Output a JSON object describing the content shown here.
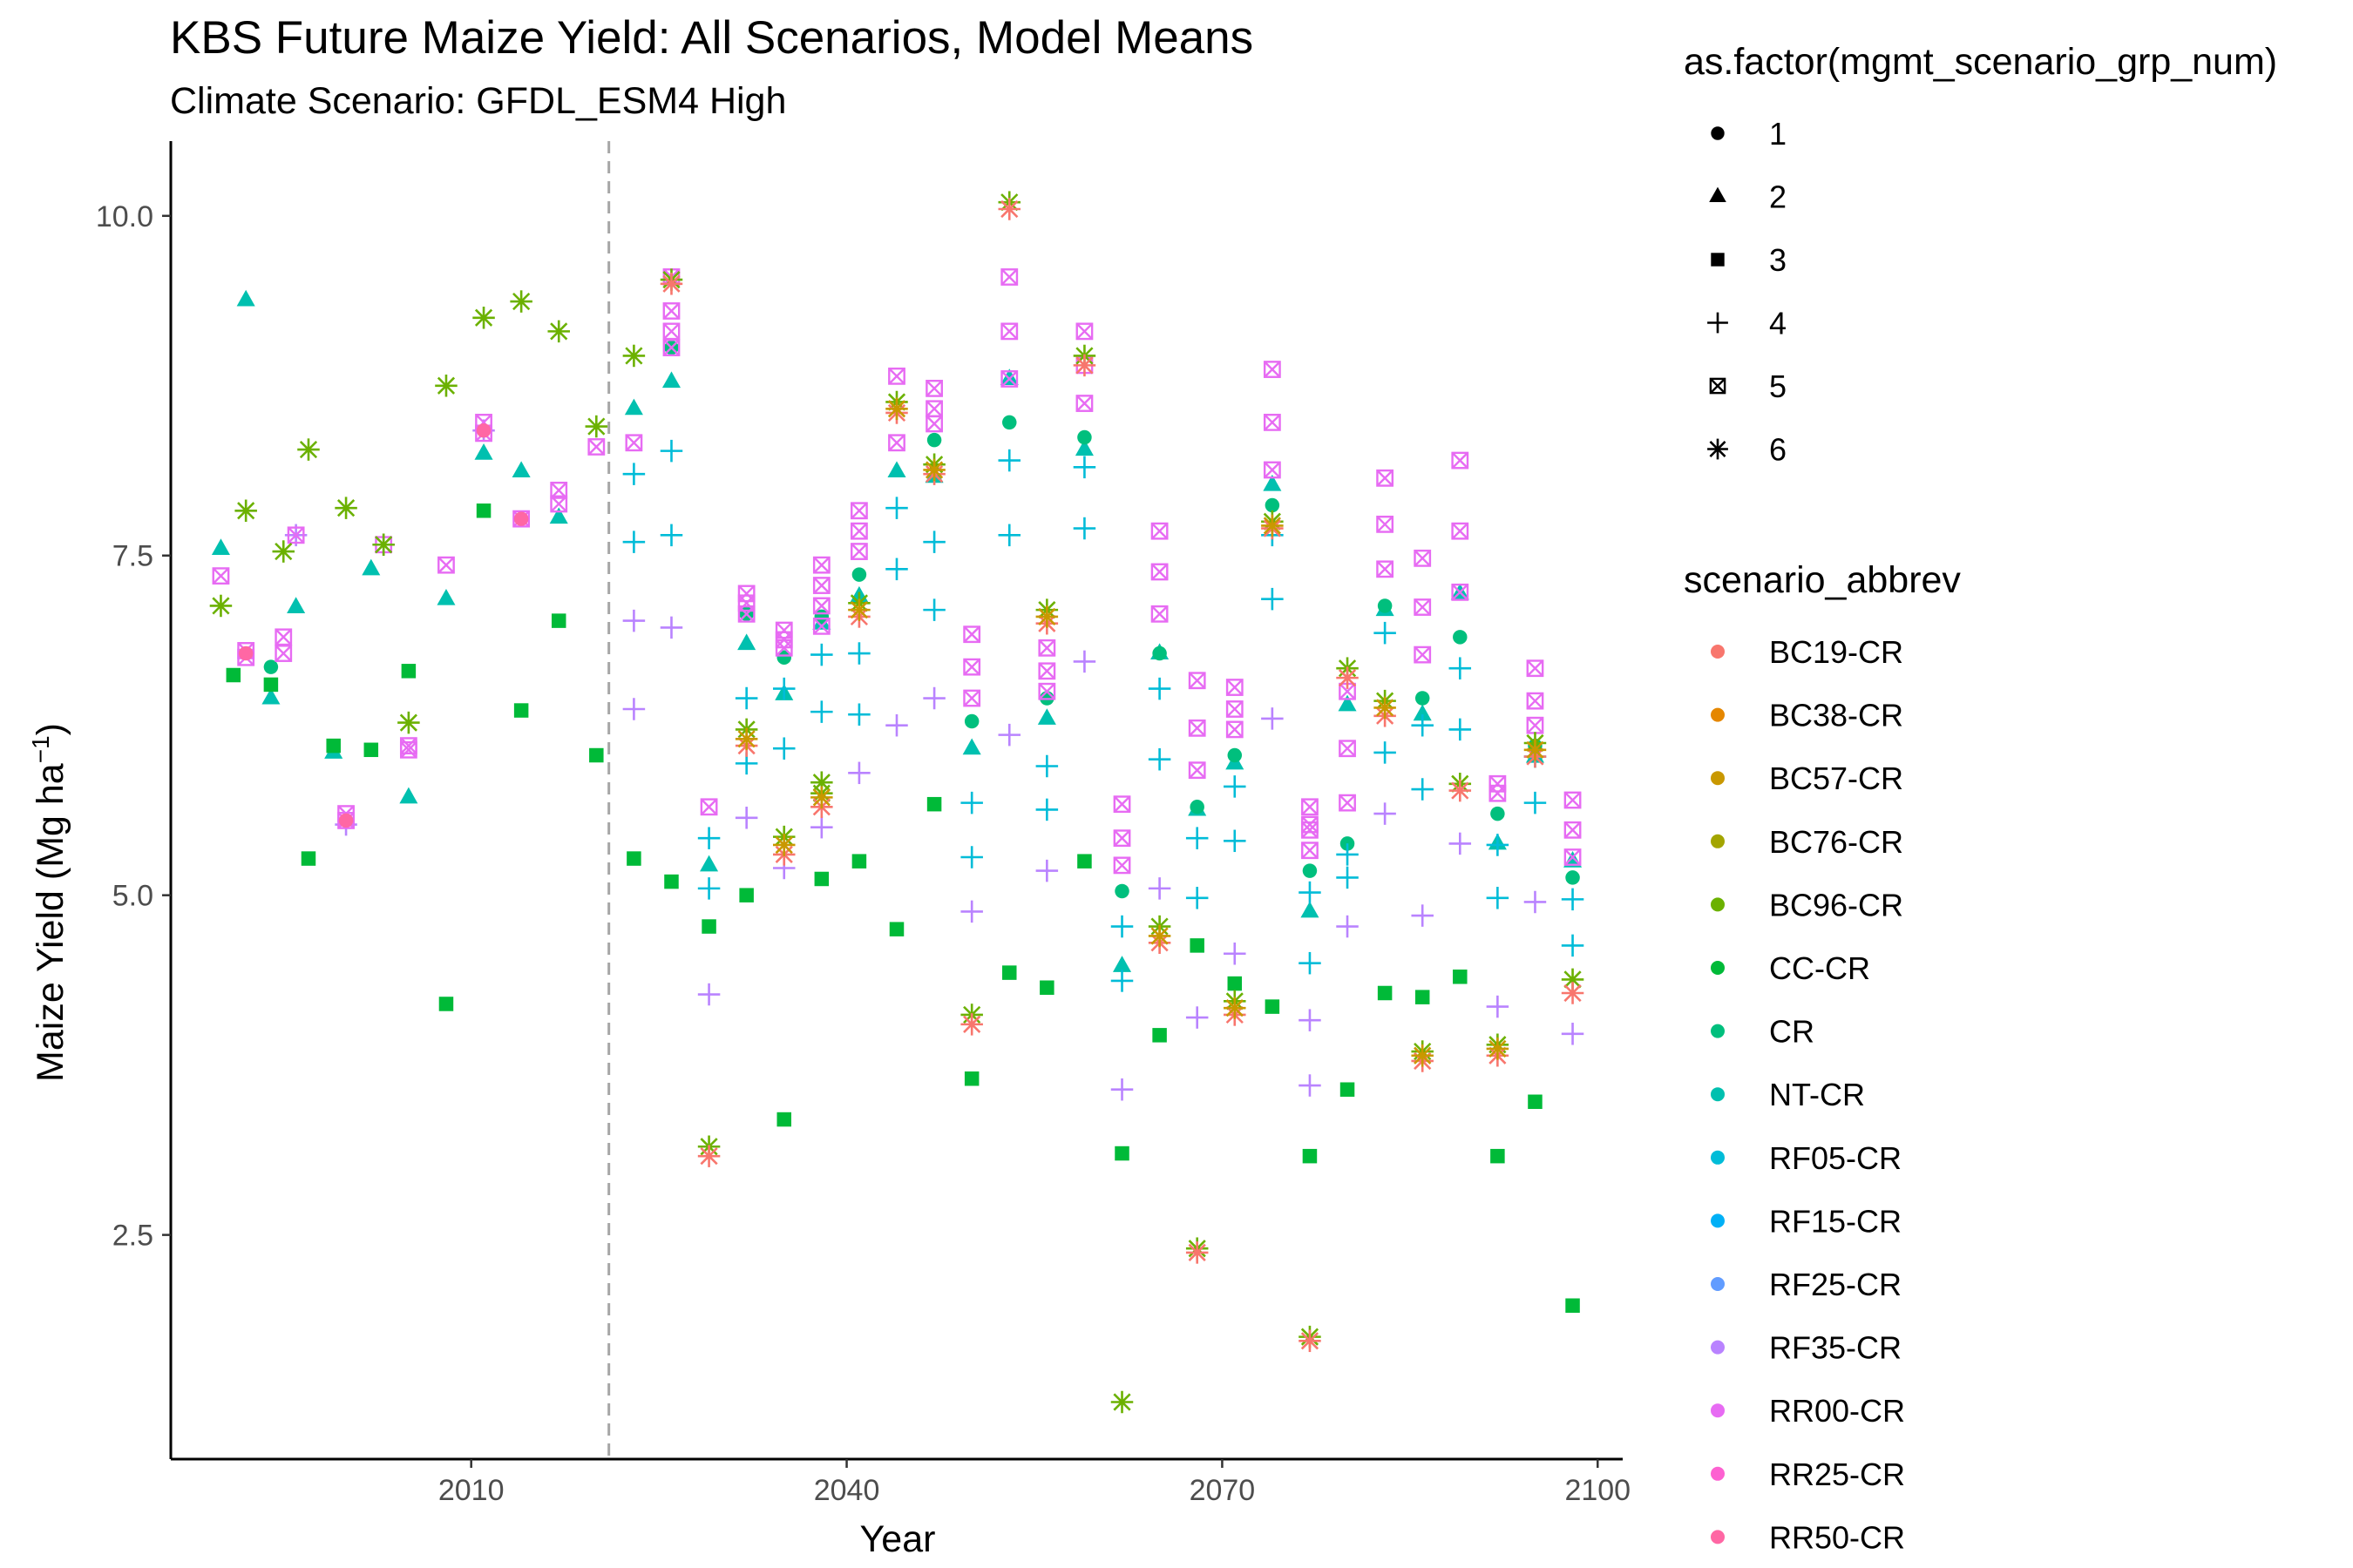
{
  "chart_data": {
    "type": "scatter",
    "title": "KBS Future Maize Yield: All Scenarios, Model Means",
    "subtitle": "Climate Scenario: GFDL_ESM4 High",
    "xlabel": "Year",
    "ylabel_main": "Maize Yield (Mg ha",
    "ylabel_sup": "−1",
    "ylabel_end": ")",
    "xlim": [
      1986,
      2102
    ],
    "ylim": [
      0.85,
      10.55
    ],
    "x_ticks": [
      2010,
      2040,
      2070,
      2100
    ],
    "y_ticks": [
      2.5,
      5.0,
      7.5,
      10.0
    ],
    "y_tick_labels": [
      "2.5",
      "5.0",
      "7.5",
      "10.0"
    ],
    "reference_line_x": 2021,
    "grid": false,
    "shape_legend": {
      "title": "as.factor(mgmt_scenario_grp_num)",
      "items": [
        {
          "label": "1",
          "shape": "circle"
        },
        {
          "label": "2",
          "shape": "triangle"
        },
        {
          "label": "3",
          "shape": "square"
        },
        {
          "label": "4",
          "shape": "plus"
        },
        {
          "label": "5",
          "shape": "boxcross"
        },
        {
          "label": "6",
          "shape": "asterisk"
        }
      ]
    },
    "color_legend": {
      "title": "scenario_abbrev",
      "items": [
        {
          "label": "BC19-CR",
          "color": "#F8766D"
        },
        {
          "label": "BC38-CR",
          "color": "#E58700"
        },
        {
          "label": "BC57-CR",
          "color": "#C99800"
        },
        {
          "label": "BC76-CR",
          "color": "#A3A500"
        },
        {
          "label": "BC96-CR",
          "color": "#6BB100"
        },
        {
          "label": "CC-CR",
          "color": "#00BA38"
        },
        {
          "label": "CR",
          "color": "#00BF7D"
        },
        {
          "label": "NT-CR",
          "color": "#00C0AF"
        },
        {
          "label": "RF05-CR",
          "color": "#00BCD8"
        },
        {
          "label": "RF15-CR",
          "color": "#00B0F6"
        },
        {
          "label": "RF25-CR",
          "color": "#619CFF"
        },
        {
          "label": "RF35-CR",
          "color": "#B983FF"
        },
        {
          "label": "RR00-CR",
          "color": "#E76BF3"
        },
        {
          "label": "RR25-CR",
          "color": "#FD61D1"
        },
        {
          "label": "RR50-CR",
          "color": "#FF67A4"
        }
      ]
    },
    "series": [
      {
        "scenario": "CR",
        "shape": "triangle",
        "color": "#00C0AF",
        "x": [
          1990,
          1992,
          1994,
          1996,
          1999,
          2002,
          2005,
          2008,
          2011,
          2014,
          2017,
          2023,
          2026,
          2029,
          2032,
          2035,
          2038,
          2041,
          2044,
          2047,
          2050,
          2053,
          2056,
          2059,
          2062,
          2065,
          2068,
          2071,
          2074,
          2077,
          2080,
          2083,
          2086,
          2089,
          2092,
          2095,
          2098
        ],
        "y": [
          7.55,
          9.38,
          6.45,
          7.12,
          6.05,
          7.4,
          5.72,
          7.18,
          8.25,
          8.12,
          7.78,
          8.58,
          8.78,
          5.22,
          6.85,
          6.48,
          7.0,
          7.2,
          8.12,
          8.08,
          6.08,
          8.8,
          6.3,
          8.28,
          4.48,
          6.78,
          5.63,
          5.97,
          8.02,
          4.88,
          6.4,
          7.1,
          6.33,
          7.22,
          5.38,
          6.02,
          5.25
        ]
      },
      {
        "scenario": "CR",
        "shape": "circle",
        "color": "#00BF7D",
        "x": [
          1994,
          2026,
          2032,
          2035,
          2038,
          2041,
          2047,
          2050,
          2053,
          2056,
          2059,
          2062,
          2065,
          2068,
          2071,
          2074,
          2077,
          2080,
          2083,
          2086,
          2089,
          2092,
          2095,
          2098
        ],
        "y": [
          6.68,
          9.03,
          7.07,
          6.75,
          7.05,
          7.36,
          8.35,
          6.28,
          8.48,
          6.45,
          8.37,
          5.03,
          6.78,
          5.65,
          6.03,
          7.87,
          5.18,
          5.38,
          7.13,
          6.45,
          6.9,
          5.6,
          6.1,
          5.13
        ]
      },
      {
        "scenario": "CC-CR",
        "shape": "square",
        "color": "#00BA38",
        "x": [
          1991,
          1994,
          1997,
          1999,
          2002,
          2005,
          2008,
          2011,
          2014,
          2017,
          2020,
          2023,
          2026,
          2029,
          2032,
          2035,
          2038,
          2041,
          2044,
          2047,
          2050,
          2053,
          2056,
          2059,
          2062,
          2065,
          2068,
          2071,
          2074,
          2077,
          2080,
          2083,
          2086,
          2089,
          2092,
          2095,
          2098
        ],
        "y": [
          6.62,
          6.55,
          5.27,
          6.1,
          6.07,
          6.65,
          4.2,
          7.83,
          6.36,
          7.02,
          6.03,
          5.27,
          5.1,
          4.77,
          5.0,
          3.35,
          5.12,
          5.25,
          4.75,
          5.67,
          3.65,
          4.43,
          4.32,
          5.25,
          3.1,
          3.97,
          4.63,
          4.35,
          4.18,
          3.08,
          3.57,
          4.28,
          4.25,
          4.4,
          3.08,
          3.48,
          1.98
        ]
      },
      {
        "scenario": "RF05-CR",
        "shape": "plus",
        "color": "#00BCD8",
        "x": [
          2023,
          2023,
          2026,
          2026,
          2029,
          2029,
          2032,
          2032,
          2035,
          2035,
          2038,
          2038,
          2041,
          2041,
          2044,
          2044,
          2047,
          2047,
          2050,
          2050,
          2053,
          2053,
          2056,
          2056,
          2059,
          2059,
          2062,
          2062,
          2065,
          2065,
          2068,
          2068,
          2071,
          2071,
          2074,
          2074,
          2077,
          2077,
          2080,
          2080,
          2083,
          2083,
          2086,
          2086,
          2089,
          2089,
          2092,
          2092,
          2095,
          2095,
          2098,
          2098
        ],
        "y": [
          8.1,
          7.6,
          8.27,
          7.65,
          5.42,
          5.05,
          6.45,
          5.97,
          6.52,
          6.08,
          6.77,
          6.35,
          6.78,
          6.33,
          7.85,
          7.4,
          7.6,
          7.1,
          5.68,
          5.28,
          8.2,
          7.65,
          5.95,
          5.63,
          8.15,
          7.7,
          4.77,
          4.37,
          6.52,
          6.0,
          5.42,
          4.98,
          5.8,
          5.4,
          7.65,
          7.18,
          5.02,
          4.5,
          5.3,
          5.13,
          6.93,
          6.05,
          6.25,
          5.78,
          6.67,
          6.22,
          5.37,
          4.98,
          6.02,
          5.68,
          4.97,
          4.63
        ]
      },
      {
        "scenario": "RF35-CR",
        "shape": "plus",
        "color": "#B983FF",
        "x": [
          1996,
          2000,
          2003,
          2011,
          2023,
          2023,
          2026,
          2029,
          2032,
          2035,
          2038,
          2041,
          2044,
          2047,
          2050,
          2053,
          2056,
          2059,
          2062,
          2065,
          2068,
          2071,
          2074,
          2077,
          2077,
          2080,
          2083,
          2086,
          2089,
          2092,
          2095,
          2098
        ],
        "y": [
          7.65,
          5.52,
          7.58,
          8.42,
          7.02,
          6.37,
          6.97,
          4.27,
          5.57,
          5.2,
          5.5,
          5.9,
          6.25,
          6.45,
          4.88,
          6.18,
          5.18,
          6.72,
          3.57,
          5.05,
          4.1,
          4.57,
          6.3,
          4.08,
          3.6,
          4.77,
          5.6,
          4.85,
          5.38,
          4.18,
          4.95,
          3.98
        ]
      },
      {
        "scenario": "RR00-CR",
        "shape": "boxcross",
        "color": "#E76BF3",
        "x": [
          1990,
          1992,
          1992,
          1995,
          1995,
          1996,
          2000,
          2000,
          2003,
          2005,
          2005,
          2008,
          2011,
          2011,
          2014,
          2017,
          2017,
          2020,
          2023,
          2026,
          2026,
          2026,
          2026,
          2029,
          2032,
          2032,
          2032,
          2035,
          2035,
          2035,
          2038,
          2038,
          2038,
          2038,
          2041,
          2041,
          2041,
          2044,
          2044,
          2047,
          2047,
          2047,
          2050,
          2050,
          2050,
          2053,
          2053,
          2053,
          2056,
          2056,
          2056,
          2059,
          2059,
          2059,
          2062,
          2062,
          2062,
          2065,
          2065,
          2065,
          2068,
          2068,
          2068,
          2071,
          2071,
          2071,
          2074,
          2074,
          2074,
          2077,
          2077,
          2077,
          2077,
          2080,
          2080,
          2080,
          2083,
          2083,
          2083,
          2086,
          2086,
          2086,
          2089,
          2089,
          2089,
          2092,
          2092,
          2095,
          2095,
          2095,
          2098,
          2098,
          2098
        ],
        "y": [
          7.35,
          6.8,
          6.75,
          6.9,
          6.78,
          7.65,
          5.6,
          5.55,
          7.58,
          6.1,
          6.07,
          7.43,
          8.48,
          8.4,
          7.77,
          7.98,
          7.88,
          8.3,
          8.33,
          9.3,
          9.15,
          9.03,
          9.55,
          5.65,
          7.22,
          7.15,
          7.07,
          6.95,
          6.88,
          6.82,
          7.43,
          7.28,
          7.13,
          6.98,
          7.83,
          7.68,
          7.53,
          8.82,
          8.33,
          8.73,
          8.58,
          8.47,
          6.92,
          6.68,
          6.45,
          9.55,
          9.15,
          8.8,
          6.82,
          6.65,
          6.5,
          9.15,
          8.9,
          8.62,
          5.67,
          5.42,
          5.22,
          7.68,
          7.38,
          7.07,
          6.58,
          6.23,
          5.92,
          6.53,
          6.37,
          6.22,
          8.87,
          8.48,
          8.13,
          5.65,
          5.48,
          5.33,
          5.52,
          6.5,
          6.08,
          5.68,
          8.07,
          7.73,
          7.4,
          7.48,
          7.12,
          6.77,
          8.2,
          7.68,
          7.23,
          5.82,
          5.75,
          6.67,
          6.43,
          6.25,
          5.7,
          5.48,
          5.28
        ]
      },
      {
        "scenario": "BC96-CR",
        "shape": "asterisk",
        "color": "#6BB100",
        "x": [
          1990,
          1992,
          1995,
          1997,
          2000,
          2003,
          2005,
          2008,
          2011,
          2014,
          2017,
          2020,
          2023,
          2026,
          2029,
          2032,
          2035,
          2038,
          2038,
          2041,
          2044,
          2047,
          2050,
          2053,
          2056,
          2059,
          2062,
          2065,
          2068,
          2071,
          2074,
          2077,
          2080,
          2083,
          2086,
          2089,
          2092,
          2095,
          2098
        ],
        "y": [
          7.13,
          7.83,
          7.53,
          8.28,
          7.85,
          7.58,
          6.27,
          8.75,
          9.25,
          9.37,
          9.15,
          8.45,
          8.97,
          9.53,
          3.15,
          6.22,
          5.43,
          5.83,
          5.75,
          7.15,
          8.63,
          8.17,
          4.12,
          10.1,
          7.1,
          8.97,
          1.27,
          4.77,
          2.4,
          4.22,
          7.75,
          1.75,
          6.67,
          6.43,
          3.85,
          5.82,
          3.9,
          6.12,
          4.38
        ]
      },
      {
        "scenario": "BC19-CR",
        "shape": "asterisk",
        "color": "#F8766D",
        "x": [
          2026,
          2029,
          2032,
          2035,
          2038,
          2041,
          2044,
          2047,
          2050,
          2053,
          2056,
          2059,
          2065,
          2068,
          2071,
          2074,
          2077,
          2080,
          2083,
          2086,
          2089,
          2092,
          2095,
          2098
        ],
        "y": [
          9.5,
          3.08,
          6.1,
          5.3,
          5.65,
          7.05,
          8.55,
          8.1,
          4.05,
          10.05,
          7.0,
          8.9,
          4.65,
          2.37,
          4.12,
          7.7,
          1.72,
          6.6,
          6.32,
          3.78,
          5.77,
          3.82,
          6.02,
          4.28
        ]
      },
      {
        "scenario": "BC57-CR",
        "shape": "asterisk",
        "color": "#C99800",
        "x": [
          2032,
          2035,
          2038,
          2041,
          2044,
          2047,
          2056,
          2065,
          2071,
          2074,
          2083,
          2086,
          2092,
          2095
        ],
        "y": [
          6.15,
          5.37,
          5.72,
          7.1,
          8.58,
          8.13,
          7.05,
          4.7,
          4.17,
          7.72,
          6.38,
          3.82,
          3.87,
          6.07
        ]
      },
      {
        "scenario": "RR50-CR",
        "shape": "circle",
        "color": "#FF67A4",
        "x": [
          1992,
          2000,
          2011,
          2014
        ],
        "y": [
          6.78,
          5.55,
          8.42,
          7.77
        ]
      }
    ]
  }
}
